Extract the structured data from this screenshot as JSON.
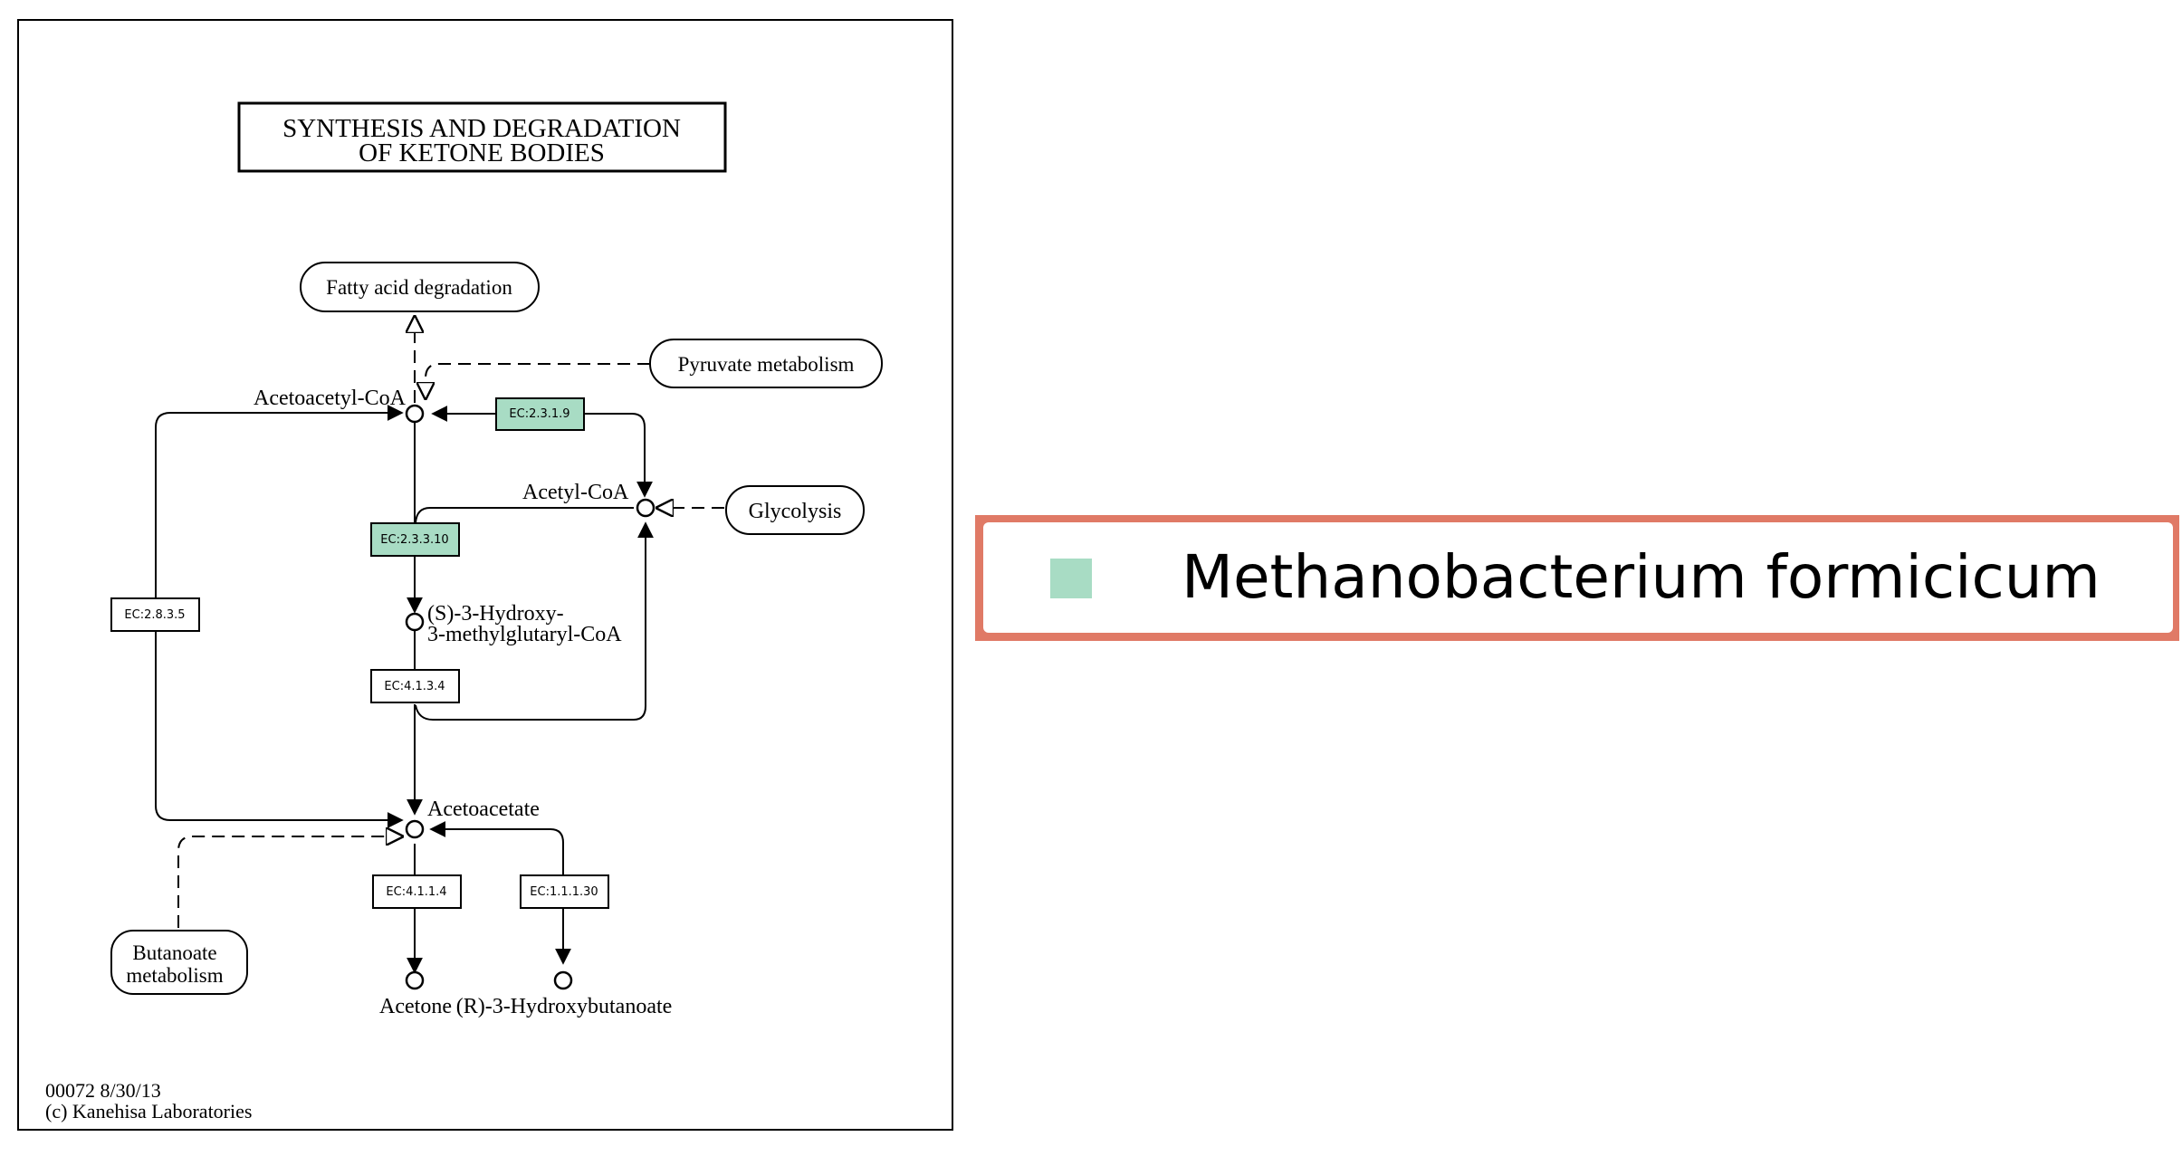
{
  "pathway": {
    "title_line1": "SYNTHESIS AND DEGRADATION",
    "title_line2": "OF KETONE BODIES",
    "footer_id": "00072 8/30/13",
    "footer_copyright": "(c) Kanehisa Laboratories"
  },
  "maps": {
    "fatty_acid": "Fatty acid degradation",
    "pyruvate": "Pyruvate metabolism",
    "glycolysis": "Glycolysis",
    "butanoate_line1": "Butanoate",
    "butanoate_line2": "metabolism"
  },
  "compounds": {
    "acetoacetyl_coa": "Acetoacetyl-CoA",
    "acetyl_coa": "Acetyl-CoA",
    "hmg_coa_line1": "(S)-3-Hydroxy-",
    "hmg_coa_line2": "3-methylglutaryl-CoA",
    "acetoacetate": "Acetoacetate",
    "acetone": "Acetone",
    "hydroxybutanoate": "(R)-3-Hydroxybutanoate"
  },
  "enzymes": {
    "ec_2_3_1_9": "EC:2.3.1.9",
    "ec_2_3_3_10": "EC:2.3.3.10",
    "ec_2_8_3_5": "EC:2.8.3.5",
    "ec_4_1_3_4": "EC:4.1.3.4",
    "ec_4_1_1_4": "EC:4.1.1.4",
    "ec_1_1_1_30": "EC:1.1.1.30"
  },
  "colors": {
    "highlight": "#a8dcc4",
    "legend_border": "#e07a66",
    "legend_swatch": "#a8dcc4"
  },
  "legend": {
    "organism": "Methanobacterium formicicum"
  }
}
